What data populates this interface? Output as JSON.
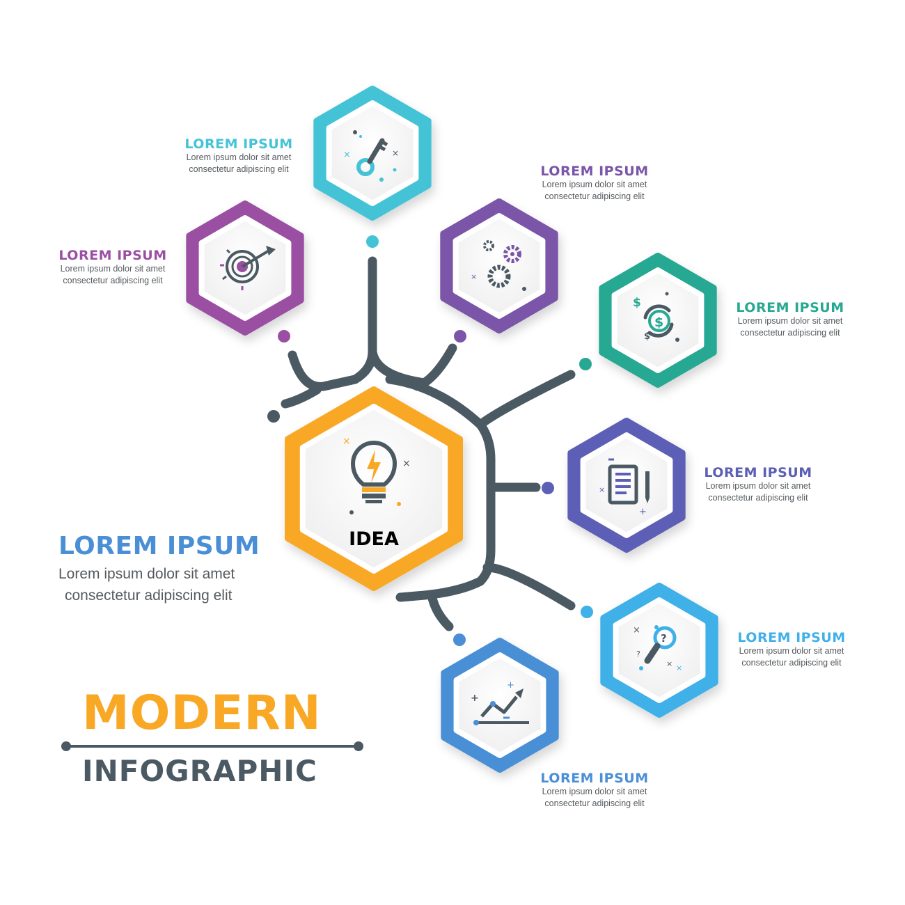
{
  "center": {
    "label": "IDEA",
    "color": "#f9a825",
    "icon": "lightbulb-icon"
  },
  "nodes": [
    {
      "id": "key",
      "title": "LOREM IPSUM",
      "desc1": "Lorem ipsum dolor sit amet",
      "desc2": "consectetur adipiscing elit",
      "color": "#45c3d6",
      "icon": "key-icon"
    },
    {
      "id": "target",
      "title": "LOREM IPSUM",
      "desc1": "Lorem ipsum dolor sit amet",
      "desc2": "consectetur adipiscing elit",
      "color": "#9b4fa3",
      "icon": "target-icon"
    },
    {
      "id": "gears",
      "title": "LOREM IPSUM",
      "desc1": "Lorem ipsum dolor sit amet",
      "desc2": "consectetur adipiscing elit",
      "color": "#7a55a8",
      "icon": "gears-icon"
    },
    {
      "id": "money",
      "title": "LOREM IPSUM",
      "desc1": "Lorem ipsum dolor sit amet",
      "desc2": "consectetur adipiscing elit",
      "color": "#26a892",
      "icon": "money-cycle-icon"
    },
    {
      "id": "document",
      "title": "LOREM IPSUM",
      "desc1": "Lorem ipsum dolor sit amet",
      "desc2": "consectetur adipiscing elit",
      "color": "#5b5fb5",
      "icon": "document-pen-icon"
    },
    {
      "id": "search",
      "title": "LOREM IPSUM",
      "desc1": "Lorem ipsum dolor sit amet",
      "desc2": "consectetur adipiscing elit",
      "color": "#3fb0e8",
      "icon": "magnifier-question-icon"
    },
    {
      "id": "chart",
      "title": "LOREM IPSUM",
      "desc1": "Lorem ipsum dolor sit amet",
      "desc2": "consectetur adipiscing elit",
      "color": "#4a8fd6",
      "icon": "growth-chart-icon"
    }
  ],
  "main": {
    "title": "LOREM IPSUM",
    "desc1": "Lorem ipsum dolor sit amet",
    "desc2": "consectetur adipiscing elit"
  },
  "heading": {
    "line1": "MODERN",
    "line2": "INFOGRAPHIC"
  },
  "colors": {
    "trunk": "#4b5963",
    "accent": "#f9a825"
  }
}
